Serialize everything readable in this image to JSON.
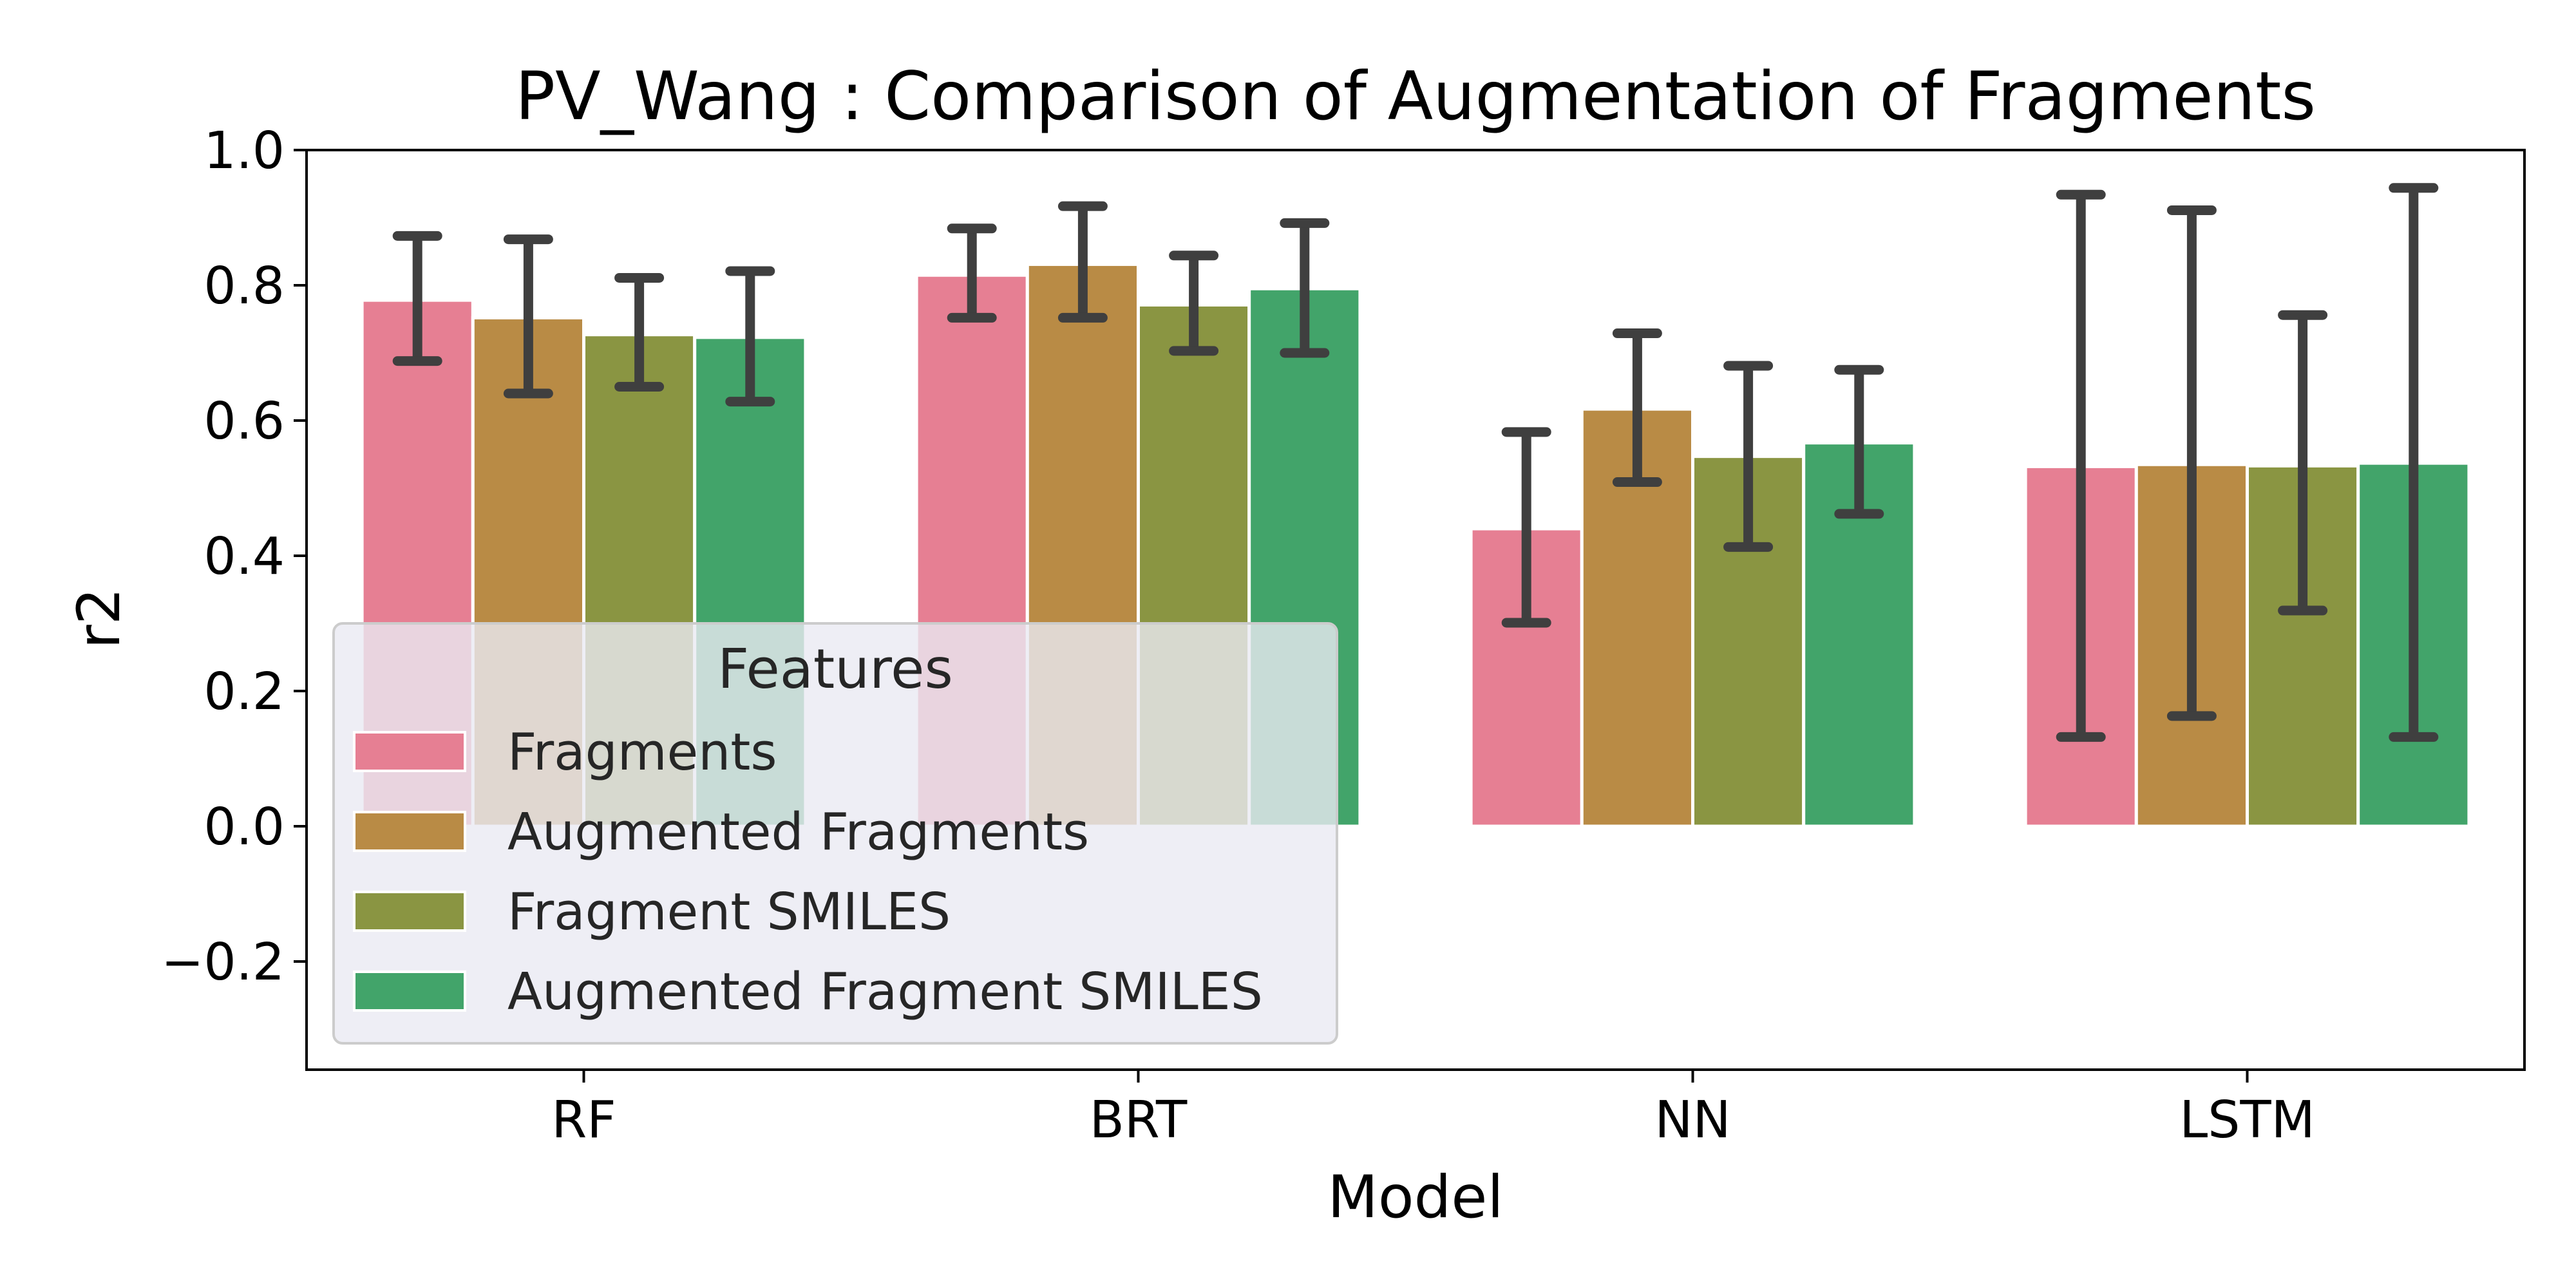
{
  "chart_data": {
    "type": "bar",
    "title": "PV_Wang : Comparison of Augmentation of Fragments",
    "xlabel": "Model",
    "ylabel": "r2",
    "ylim": [
      -0.36,
      1.0
    ],
    "yticks": [
      -0.2,
      0.0,
      0.2,
      0.4,
      0.6,
      0.8,
      1.0
    ],
    "ytick_labels": [
      "−0.2",
      "0.0",
      "0.2",
      "0.4",
      "0.6",
      "0.8",
      "1.0"
    ],
    "categories": [
      "RF",
      "BRT",
      "NN",
      "LSTM"
    ],
    "grid": false,
    "legend": {
      "title": "Features",
      "placement": "lower-left"
    },
    "series": [
      {
        "name": "Fragments",
        "color": "#e67f93",
        "values": [
          0.778,
          0.815,
          0.44,
          0.532
        ],
        "err_low": [
          0.688,
          0.752,
          0.301,
          0.132
        ],
        "err_high": [
          0.873,
          0.884,
          0.583,
          0.934
        ]
      },
      {
        "name": "Augmented Fragments",
        "color": "#b98b45",
        "values": [
          0.752,
          0.831,
          0.617,
          0.535
        ],
        "err_low": [
          0.64,
          0.752,
          0.509,
          0.163
        ],
        "err_high": [
          0.868,
          0.917,
          0.729,
          0.911
        ]
      },
      {
        "name": "Fragment SMILES",
        "color": "#8a9542",
        "values": [
          0.727,
          0.771,
          0.547,
          0.533
        ],
        "err_low": [
          0.65,
          0.703,
          0.413,
          0.319
        ],
        "err_high": [
          0.811,
          0.844,
          0.681,
          0.756
        ]
      },
      {
        "name": "Augmented Fragment SMILES",
        "color": "#42a46a",
        "values": [
          0.723,
          0.795,
          0.567,
          0.537
        ],
        "err_low": [
          0.628,
          0.7,
          0.462,
          0.132
        ],
        "err_high": [
          0.821,
          0.892,
          0.675,
          0.944
        ]
      }
    ]
  }
}
